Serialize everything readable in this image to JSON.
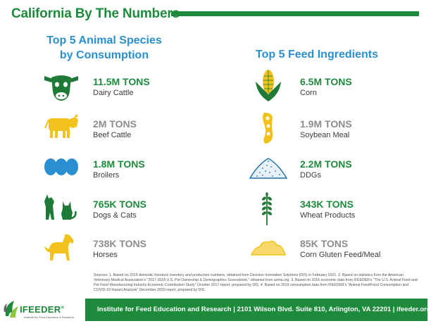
{
  "title": "California By The Numbers",
  "colors": {
    "brand_green": "#1e8a3c",
    "heading_blue": "#2a8fd1",
    "icon_green": "#1e7a36",
    "icon_yellow": "#f1c21b",
    "icon_blue": "#2a8fd1"
  },
  "left": {
    "heading_line1": "Top 5 Animal Species",
    "heading_line2": "by Consumption",
    "items": [
      {
        "value": "11.5M TONS",
        "label": "Dairy Cattle",
        "icon": "dairy-cow-icon"
      },
      {
        "value": "2M TONS",
        "label": "Beef Cattle",
        "icon": "beef-cattle-icon"
      },
      {
        "value": "1.8M TONS",
        "label": "Broilers",
        "icon": "eggs-icon"
      },
      {
        "value": "765K TONS",
        "label": "Dogs & Cats",
        "icon": "dog-cat-icon"
      },
      {
        "value": "738K TONS",
        "label": "Horses",
        "icon": "horse-icon"
      }
    ]
  },
  "right": {
    "heading": "Top 5 Feed Ingredients",
    "items": [
      {
        "value": "6.5M TONS",
        "label": "Corn",
        "icon": "corn-icon"
      },
      {
        "value": "1.9M TONS",
        "label": "Soybean Meal",
        "icon": "soybean-icon"
      },
      {
        "value": "2.2M TONS",
        "label": "DDGs",
        "icon": "ddgs-pile-icon"
      },
      {
        "value": "343K TONS",
        "label": "Wheat Products",
        "icon": "wheat-icon"
      },
      {
        "value": "85K TONS",
        "label": "Corn Gluten Feed/Meal",
        "icon": "corn-gluten-pile-icon"
      }
    ]
  },
  "sources": "Sources: 1. Based on 2019 domestic livestock inventory and production numbers, obtained from Decision Innovation Solutions (DIS) in February 2021. 2. Based on statistics from the American Veterinary Medical Association's \"2017-2018 U.S. Pet Ownership & Demographics Sourcebook,\" obtained from avma.org. 3. Based on 2016 economic data from IFEEDER's \"The U.S. Animal Feed and Pet Food Manufacturing Industry Economic Contribution Study\" October 2017 report, prepared by DIS. 4. Based on 2019 consumption data from IFEEDER's \"Animal Feed/Food Consumption and COVID-19 Impact Analysis\" December 2020 report, prepared by DIS.",
  "logo": {
    "name": "IFEEDER",
    "reg": "®",
    "tagline": "Institute for Feed Education & Research"
  },
  "footer": "Institute for Feed Education and Research | 2101 Wilson Blvd. Suite 810, Arlington, VA 22201 | ifeeder.org"
}
